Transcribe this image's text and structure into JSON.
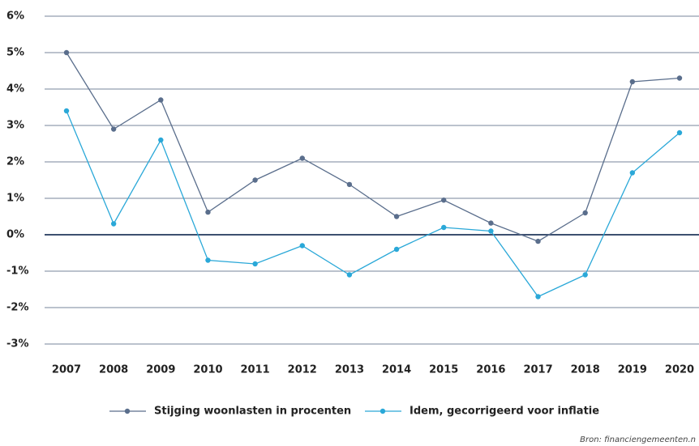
{
  "chart_data": {
    "type": "line",
    "categories": [
      "2007",
      "2008",
      "2009",
      "2010",
      "2011",
      "2012",
      "2013",
      "2014",
      "2015",
      "2016",
      "2017",
      "2018",
      "2019",
      "2020"
    ],
    "series": [
      {
        "name": "Stijging woonlasten in procenten",
        "color": "#5a6e8c",
        "values": [
          5.0,
          2.9,
          3.7,
          0.62,
          1.5,
          2.1,
          1.38,
          0.5,
          0.95,
          0.32,
          -0.18,
          0.6,
          4.2,
          4.3
        ]
      },
      {
        "name": "Idem, gecorrigeerd voor inflatie",
        "color": "#2aa8d8",
        "values": [
          3.4,
          0.3,
          2.6,
          -0.7,
          -0.8,
          -0.3,
          -1.1,
          -0.4,
          0.2,
          0.1,
          -1.7,
          -1.1,
          1.7,
          2.8
        ]
      }
    ],
    "ylim": [
      -3,
      6
    ],
    "yticks": [
      {
        "value": -3,
        "label": "-3%"
      },
      {
        "value": -2,
        "label": "-2%"
      },
      {
        "value": -1,
        "label": "-1%"
      },
      {
        "value": 0,
        "label": "0%"
      },
      {
        "value": 1,
        "label": "1%"
      },
      {
        "value": 2,
        "label": "2%"
      },
      {
        "value": 3,
        "label": "3%"
      },
      {
        "value": 4,
        "label": "4%"
      },
      {
        "value": 5,
        "label": "5%"
      },
      {
        "value": 6,
        "label": "6%"
      }
    ],
    "grid": true,
    "legend": "bottom",
    "source": "Bron: financiengemeenten.n"
  }
}
